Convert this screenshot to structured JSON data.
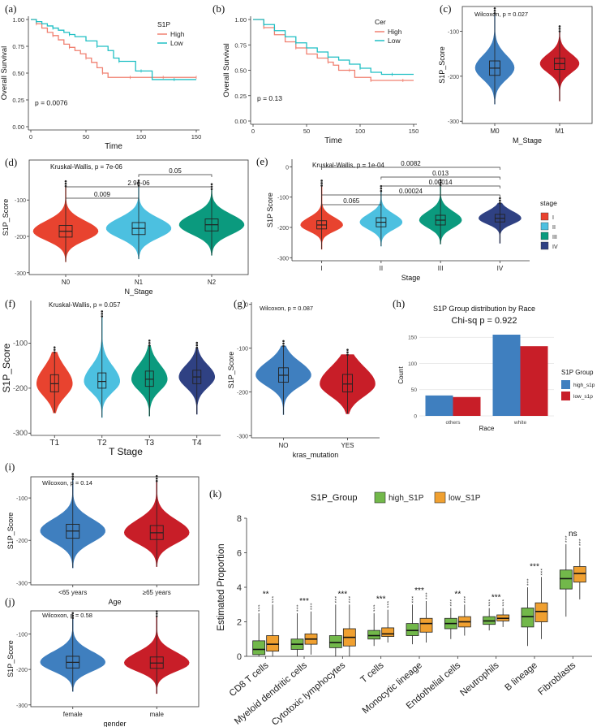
{
  "colors": {
    "km_high": "#f08070",
    "km_low": "#1fbfc4",
    "blue": "#3f7fbf",
    "red": "#c81e28",
    "stage_I": "#e8432f",
    "stage_II": "#4cc0e0",
    "stage_III": "#0b9a7e",
    "stage_IV": "#2f4183",
    "k_high": "#72b84a",
    "k_low": "#f0a030"
  },
  "panels": {
    "a": {
      "label": "(a)",
      "chart_data": {
        "type": "line",
        "xlabel": "Time",
        "ylabel": "Overall Survival",
        "xlim": [
          0,
          150
        ],
        "ylim": [
          0,
          1
        ],
        "xticks": [
          "0",
          "50",
          "100",
          "150"
        ],
        "yticks": [
          "0.00",
          "0.25",
          "0.50",
          "0.75",
          "1.00"
        ],
        "legend_title": "S1P",
        "annotation": "p = 0.0076",
        "series": [
          {
            "name": "High",
            "x": [
              0,
              5,
              10,
              15,
              20,
              25,
              30,
              35,
              40,
              45,
              50,
              55,
              60,
              65,
              70,
              80,
              90,
              100,
              110,
              120,
              130,
              140,
              150
            ],
            "y": [
              1.0,
              0.96,
              0.92,
              0.88,
              0.85,
              0.81,
              0.77,
              0.74,
              0.71,
              0.68,
              0.64,
              0.6,
              0.55,
              0.5,
              0.46,
              0.46,
              0.46,
              0.46,
              0.46,
              0.46,
              0.46,
              0.46,
              0.46
            ]
          },
          {
            "name": "Low",
            "x": [
              0,
              5,
              10,
              15,
              20,
              25,
              30,
              35,
              40,
              50,
              60,
              70,
              75,
              80,
              90,
              95,
              100,
              110,
              120,
              130,
              140,
              150
            ],
            "y": [
              1.0,
              0.98,
              0.96,
              0.94,
              0.92,
              0.9,
              0.88,
              0.86,
              0.84,
              0.8,
              0.75,
              0.71,
              0.64,
              0.61,
              0.61,
              0.52,
              0.52,
              0.44,
              0.44,
              0.44,
              0.44,
              0.44
            ]
          }
        ]
      }
    },
    "b": {
      "label": "(b)",
      "chart_data": {
        "type": "line",
        "xlabel": "Time",
        "ylabel": "Overall Survival",
        "xlim": [
          0,
          150
        ],
        "ylim": [
          0,
          1
        ],
        "xticks": [
          "0",
          "50",
          "100",
          "150"
        ],
        "yticks": [
          "0.00",
          "0.25",
          "0.50",
          "0.75",
          "1.00"
        ],
        "legend_title": "Cer",
        "annotation": "p = 0.13",
        "series": [
          {
            "name": "High",
            "x": [
              0,
              10,
              20,
              30,
              40,
              50,
              60,
              70,
              75,
              80,
              90,
              95,
              100,
              110,
              120,
              130,
              140,
              150
            ],
            "y": [
              1.0,
              0.92,
              0.85,
              0.78,
              0.72,
              0.66,
              0.62,
              0.58,
              0.55,
              0.5,
              0.5,
              0.43,
              0.43,
              0.4,
              0.4,
              0.4,
              0.4,
              0.4
            ]
          },
          {
            "name": "Low",
            "x": [
              0,
              10,
              20,
              30,
              40,
              50,
              60,
              70,
              80,
              90,
              100,
              110,
              120,
              130,
              140,
              150
            ],
            "y": [
              1.0,
              0.95,
              0.89,
              0.83,
              0.77,
              0.72,
              0.68,
              0.63,
              0.6,
              0.56,
              0.52,
              0.48,
              0.46,
              0.46,
              0.46,
              0.46
            ]
          }
        ]
      }
    },
    "c": {
      "label": "(c)",
      "chart_data": {
        "type": "violin",
        "xlabel": "M_Stage",
        "ylabel": "S1P_Score",
        "ylim": [
          -305,
          -45
        ],
        "yticks": [
          -100,
          -200,
          -300
        ],
        "ytick_labels": [
          "-100",
          "-200",
          "-300"
        ],
        "annotation": "Wilcoxon, p = 0.027",
        "categories": [
          "M0",
          "M1"
        ],
        "medians": [
          -182,
          -172
        ],
        "q1": [
          -198,
          -185
        ],
        "q3": [
          -166,
          -160
        ],
        "mins": [
          -262,
          -255
        ],
        "maxs": [
          -60,
          -100
        ]
      }
    },
    "d": {
      "label": "(d)",
      "chart_data": {
        "type": "violin",
        "xlabel": "N_Stage",
        "ylabel": "S1P_Score",
        "ylim": [
          -305,
          10
        ],
        "yticks": [
          -100,
          -200,
          -300
        ],
        "ytick_labels": [
          "-100",
          "-200",
          "-300"
        ],
        "annotation": "Kruskal-Wallis, p = 7e-06",
        "categories": [
          "N0",
          "N1",
          "N2"
        ],
        "medians": [
          -186,
          -178,
          -168
        ],
        "q1": [
          -202,
          -195,
          -185
        ],
        "q3": [
          -170,
          -162,
          -152
        ],
        "mins": [
          -270,
          -262,
          -252
        ],
        "maxs": [
          -62,
          -60,
          -70
        ],
        "comparisons": [
          [
            "N1",
            "N2",
            "0.05"
          ],
          [
            "N0",
            "N2",
            "2.9e-06"
          ],
          [
            "N0",
            "N1",
            "0.009"
          ]
        ]
      }
    },
    "e": {
      "label": "(e)",
      "chart_data": {
        "type": "violin",
        "xlabel": "Stage",
        "ylabel": "S1P Score",
        "ylim": [
          -310,
          25
        ],
        "yticks": [
          0,
          -100,
          -200,
          -300
        ],
        "ytick_labels": [
          "0",
          "-100",
          "-200",
          "-300"
        ],
        "annotation": "Kruskal-Wallis, p = 1e-04",
        "categories": [
          "I",
          "II",
          "III",
          "IV"
        ],
        "medians": [
          -192,
          -183,
          -176,
          -170
        ],
        "q1": [
          -205,
          -198,
          -192,
          -182
        ],
        "q3": [
          -178,
          -168,
          -160,
          -157
        ],
        "mins": [
          -272,
          -262,
          -255,
          -252
        ],
        "maxs": [
          -62,
          -80,
          -60,
          -120
        ],
        "legend_title": "stage",
        "legend": [
          "I",
          "II",
          "III",
          "IV"
        ],
        "comparisons": [
          [
            "I",
            "IV",
            "0.0082"
          ],
          [
            "II",
            "IV",
            "0.013"
          ],
          [
            "II",
            "IV",
            "0.00014"
          ],
          [
            "I",
            "IV",
            "0.00024"
          ],
          [
            "I",
            "II",
            "0.065"
          ]
        ]
      }
    },
    "f": {
      "label": "(f)",
      "chart_data": {
        "type": "violin",
        "xlabel": "T Stage",
        "ylabel": "S1P_Score",
        "ylim": [
          -305,
          -5
        ],
        "yticks": [
          -100,
          -200,
          -300
        ],
        "ytick_labels": [
          "-100",
          "-200",
          "-300"
        ],
        "annotation": "Kruskal-Wallis, p = 0.057",
        "categories": [
          "T1",
          "T2",
          "T3",
          "T4"
        ],
        "medians": [
          -190,
          -185,
          -180,
          -175
        ],
        "q1": [
          -208,
          -200,
          -196,
          -190
        ],
        "q3": [
          -170,
          -166,
          -162,
          -160
        ],
        "mins": [
          -255,
          -265,
          -262,
          -258
        ],
        "maxs": [
          -120,
          -40,
          -105,
          -110
        ]
      }
    },
    "g": {
      "label": "(g)",
      "chart_data": {
        "type": "violin",
        "xlabel": "kras_mutation",
        "ylabel": "S1P_Score",
        "ylim": [
          -305,
          5
        ],
        "yticks": [
          0,
          -100,
          -200,
          -300
        ],
        "ytick_labels": [
          "0",
          "-100",
          "-200",
          "-300"
        ],
        "annotation": "Wilcoxon, p = 0.087",
        "categories": [
          "NO",
          "YES"
        ],
        "medians": [
          -162,
          -182
        ],
        "q1": [
          -178,
          -200
        ],
        "q3": [
          -145,
          -160
        ],
        "mins": [
          -252,
          -250
        ],
        "maxs": [
          -95,
          -115
        ]
      }
    },
    "h": {
      "label": "(h)",
      "chart_data": {
        "type": "bar",
        "title": "S1P Group distribution by Race",
        "subtitle": "Chi-sq p = 0.922",
        "xlabel": "Race",
        "ylabel": "Count",
        "ylim": [
          0,
          155
        ],
        "yticks": [
          0,
          50,
          100,
          150
        ],
        "categories": [
          "others",
          "white"
        ],
        "legend_title": "S1P Group",
        "series": [
          {
            "name": "high_s1p",
            "values": [
              39,
              155
            ]
          },
          {
            "name": "low_s1p",
            "values": [
              36,
              133
            ]
          }
        ]
      }
    },
    "i": {
      "label": "(i)",
      "chart_data": {
        "type": "violin",
        "xlabel": "Age",
        "ylabel": "S1P_Score",
        "ylim": [
          -305,
          -50
        ],
        "yticks": [
          -100,
          -200,
          -300
        ],
        "ytick_labels": [
          "-100",
          "-200",
          "-300"
        ],
        "annotation": "Wilcoxon, p = 0.14",
        "categories": [
          "<65 years",
          "≥65 years"
        ],
        "medians": [
          -178,
          -182
        ],
        "q1": [
          -195,
          -198
        ],
        "q3": [
          -162,
          -165
        ],
        "mins": [
          -265,
          -262
        ],
        "maxs": [
          -55,
          -60
        ]
      }
    },
    "j": {
      "label": "(j)",
      "chart_data": {
        "type": "violin",
        "xlabel": "gender",
        "ylabel": "S1P_Score",
        "ylim": [
          -305,
          -35
        ],
        "yticks": [
          -100,
          -200,
          -300
        ],
        "ytick_labels": [
          "-100",
          "-200",
          "-300"
        ],
        "annotation": "Wilcoxon, p = 0.58",
        "categories": [
          "female",
          "male"
        ],
        "medians": [
          -180,
          -182
        ],
        "q1": [
          -196,
          -197
        ],
        "q3": [
          -163,
          -165
        ],
        "mins": [
          -262,
          -268
        ],
        "maxs": [
          -55,
          -50
        ]
      }
    },
    "k": {
      "label": "(k)",
      "chart_data": {
        "type": "box",
        "ylabel": "Estimated Proportion",
        "ylim": [
          0,
          8
        ],
        "yticks": [
          0,
          2,
          4,
          6,
          8
        ],
        "legend_title": "S1P_Group",
        "categories": [
          "CD8 T cells",
          "Myeloid dendritic cells",
          "Cytotoxic lymphocytes",
          "T cells",
          "Monocytic lineage",
          "Endothelial cells",
          "Neutrophils",
          "B lineage",
          "Fibroblasts"
        ],
        "significance": [
          "**",
          "***",
          "***",
          "***",
          "***",
          "**",
          "***",
          "***",
          "ns"
        ],
        "series": [
          {
            "name": "high_S1P",
            "median": [
              0.4,
              0.7,
              0.8,
              1.2,
              1.5,
              1.9,
              2.05,
              2.3,
              4.5
            ],
            "q1": [
              0.1,
              0.4,
              0.5,
              1.0,
              1.2,
              1.6,
              1.85,
              1.7,
              3.9
            ],
            "q3": [
              0.9,
              1.0,
              1.2,
              1.5,
              1.9,
              2.2,
              2.3,
              2.8,
              5.0
            ],
            "min": [
              0.0,
              0.0,
              0.0,
              0.6,
              0.7,
              1.0,
              1.5,
              0.6,
              2.3
            ],
            "max": [
              2.5,
              2.5,
              3.0,
              2.5,
              3.0,
              2.8,
              2.8,
              4.0,
              6.5
            ]
          },
          {
            "name": "low_S1P",
            "median": [
              0.7,
              1.0,
              1.1,
              1.3,
              1.9,
              2.0,
              2.2,
              2.6,
              4.8
            ],
            "q1": [
              0.3,
              0.7,
              0.6,
              1.15,
              1.4,
              1.7,
              2.05,
              2.0,
              4.3
            ],
            "q3": [
              1.2,
              1.3,
              1.6,
              1.65,
              2.2,
              2.3,
              2.4,
              3.1,
              5.2
            ],
            "min": [
              0.0,
              0.1,
              0.0,
              0.8,
              0.8,
              1.2,
              1.7,
              1.0,
              3.3
            ],
            "max": [
              3.0,
              2.6,
              3.0,
              2.7,
              3.2,
              3.0,
              2.8,
              4.6,
              6.3
            ]
          }
        ]
      }
    }
  }
}
